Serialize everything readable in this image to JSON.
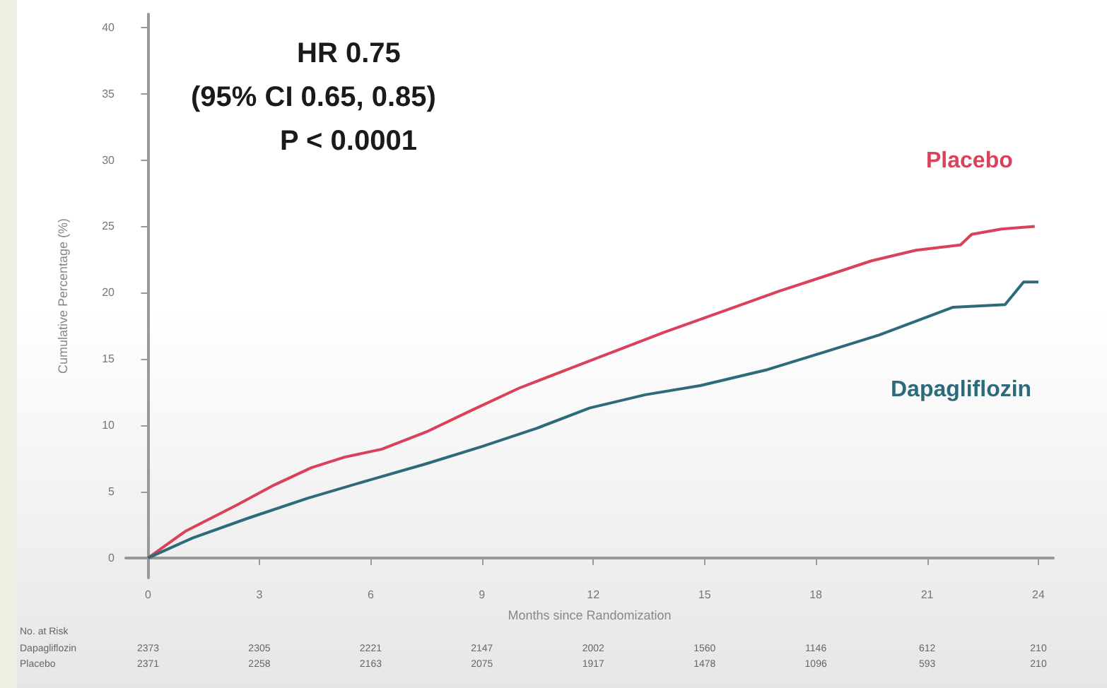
{
  "chart_data": {
    "type": "line",
    "xlabel": "Months since Randomization",
    "ylabel": "Cumulative Percentage (%)",
    "annotations": [
      "HR 0.75",
      "(95% CI 0.65, 0.85)",
      "P < 0.0001",
      "No. at Risk",
      "Dapagliflozin 2373 2305 2221 2147 2002 1560 1146 612 210",
      "Placebo 2371 2258 2163 2075 1917 1478 1096 593 210"
    ],
    "series": [
      {
        "name": "Placebo",
        "color": "#d9425a",
        "x": [
          0,
          1,
          2.4,
          3.4,
          4.4,
          5.3,
          6.3,
          7.5,
          8.7,
          10,
          11.2,
          12.5,
          13.9,
          15.5,
          17,
          18.2,
          19.5,
          20.7,
          21.9,
          22.2,
          23,
          23.9
        ],
        "values": [
          0,
          2,
          4,
          5.5,
          6.8,
          7.6,
          8.2,
          9.5,
          11.1,
          12.8,
          14.1,
          15.5,
          17,
          18.6,
          20.1,
          21.2,
          22.4,
          23.2,
          23.6,
          24.4,
          24.8,
          25
        ]
      },
      {
        "name": "Dapagliflozin",
        "color": "#2e6b7a",
        "x": [
          0,
          1.2,
          2.7,
          4.3,
          6,
          7.5,
          9,
          10.5,
          11.9,
          13.4,
          14.9,
          16.7,
          18.2,
          19.7,
          21.7,
          23.1,
          23.6,
          24
        ],
        "values": [
          0,
          1.5,
          3,
          4.5,
          5.9,
          7.1,
          8.4,
          9.8,
          11.3,
          12.3,
          13,
          14.2,
          15.5,
          16.8,
          18.9,
          19.1,
          20.8,
          20.8
        ]
      }
    ],
    "xlim": [
      -0.6,
      24.4
    ],
    "xticks": [
      0,
      3,
      6,
      9,
      12,
      15,
      18,
      21,
      24
    ],
    "ylim": [
      -1.5,
      41
    ],
    "yticks": [
      0,
      5,
      10,
      15,
      20,
      25,
      30,
      35,
      40
    ],
    "legend": false,
    "marker": "none",
    "line_style": "solid"
  }
}
